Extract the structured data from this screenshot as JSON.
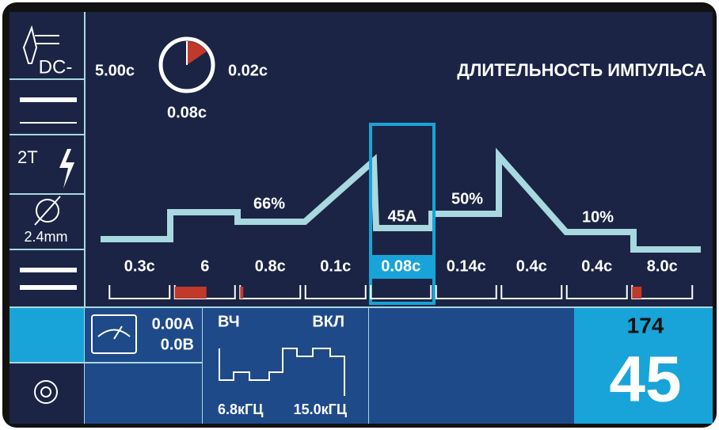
{
  "sidebar": {
    "mode": "DC-",
    "trigger": "2T",
    "electrode": "2.4mm"
  },
  "timer": {
    "left": "5.00c",
    "right": "0.02c",
    "bottom": "0.08c"
  },
  "title": "ДЛИТЕЛЬНОСТЬ ИМПУЛЬСА",
  "graph_labels": [
    "66%",
    "45A",
    "50%",
    "10%"
  ],
  "steps": [
    "0.3c",
    "6",
    "0.8c",
    "0.1c",
    "0.08c",
    "0.14c",
    "0.4c",
    "0.4c",
    "8.0c"
  ],
  "meter": {
    "current": "0.00A",
    "voltage": "0.0B"
  },
  "hf": {
    "label": "ВЧ",
    "state": "ВКЛ",
    "low": "6.8кГЦ",
    "high": "15.0кГЦ"
  },
  "display": {
    "top": "174",
    "main": "45"
  }
}
